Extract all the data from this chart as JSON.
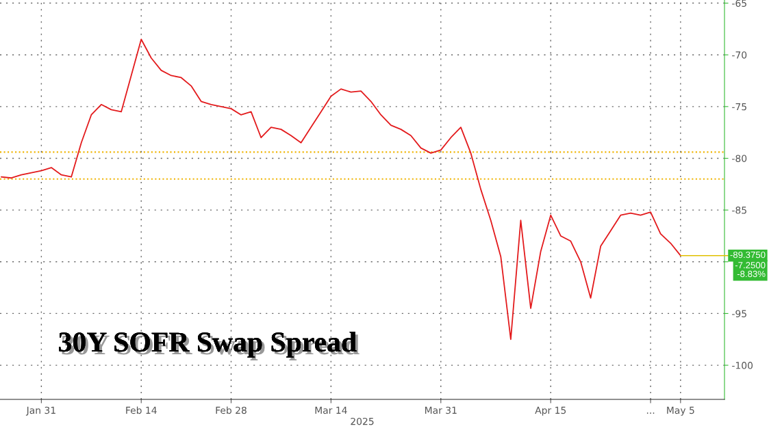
{
  "chart_data": {
    "type": "line",
    "title": "30Y SOFR Swap Spread",
    "xlabel": "2025",
    "categories": [
      null,
      null,
      null,
      null,
      "Jan 31",
      null,
      null,
      null,
      null,
      null,
      null,
      null,
      null,
      null,
      "Feb 14",
      null,
      null,
      null,
      null,
      null,
      null,
      null,
      null,
      "Feb 28",
      null,
      null,
      null,
      null,
      null,
      null,
      null,
      null,
      null,
      "Mar 14",
      null,
      null,
      null,
      null,
      null,
      null,
      null,
      null,
      null,
      null,
      "Mar 31",
      null,
      null,
      null,
      null,
      null,
      null,
      null,
      null,
      null,
      null,
      "Apr 15",
      null,
      null,
      null,
      null,
      null,
      null,
      null,
      null,
      null,
      "...",
      null,
      null,
      "May 5",
      null,
      null,
      null,
      null
    ],
    "series": [
      {
        "color": "#e31a1c",
        "values": [
          -81.8,
          -81.9,
          -81.6,
          -81.4,
          -81.2,
          -80.9,
          -81.6,
          -81.8,
          -78.5,
          -75.8,
          -74.8,
          -75.3,
          -75.5,
          -72.0,
          -68.5,
          -70.3,
          -71.5,
          -72.0,
          -72.2,
          -73.0,
          -74.5,
          -74.8,
          -75.0,
          -75.2,
          -75.8,
          -75.5,
          -78.0,
          -77.0,
          -77.2,
          -77.8,
          -78.5,
          -77.0,
          -75.5,
          -74.0,
          -73.3,
          -73.6,
          -73.5,
          -74.5,
          -75.8,
          -76.8,
          -77.2,
          -77.8,
          -79.0,
          -79.5,
          -79.2,
          -78.0,
          -77.0,
          -79.5,
          -83.0,
          -86.0,
          -89.5,
          -97.5,
          -86.0,
          -94.5,
          -89.0,
          -85.5,
          -87.5,
          -88.0,
          -90.0,
          -93.5,
          -88.5,
          -87.0,
          -85.5,
          -85.3,
          -85.5,
          -85.2,
          -87.3,
          -88.2,
          -89.4,
          null,
          null,
          null,
          null
        ]
      }
    ],
    "ylim": [
      -103.3,
      -64.7
    ],
    "yticks": [
      -65,
      -70,
      -75,
      -80,
      -85,
      {
        "value": -90,
        "label": null
      },
      -95,
      -100
    ],
    "ref_lines": [
      {
        "axis": "y",
        "value": -79.4,
        "color": "#f0b400",
        "line_style": "dotted"
      },
      {
        "axis": "y",
        "value": -82.0,
        "color": "#f0b400",
        "line_style": "dotted"
      }
    ],
    "annotations": [
      {
        "text": "-89.3750",
        "x": "May 5",
        "y": -89.4
      },
      "-7.2500",
      "-8.83%"
    ],
    "grid": true,
    "legend": false,
    "marker": "none",
    "line_style": "solid"
  }
}
